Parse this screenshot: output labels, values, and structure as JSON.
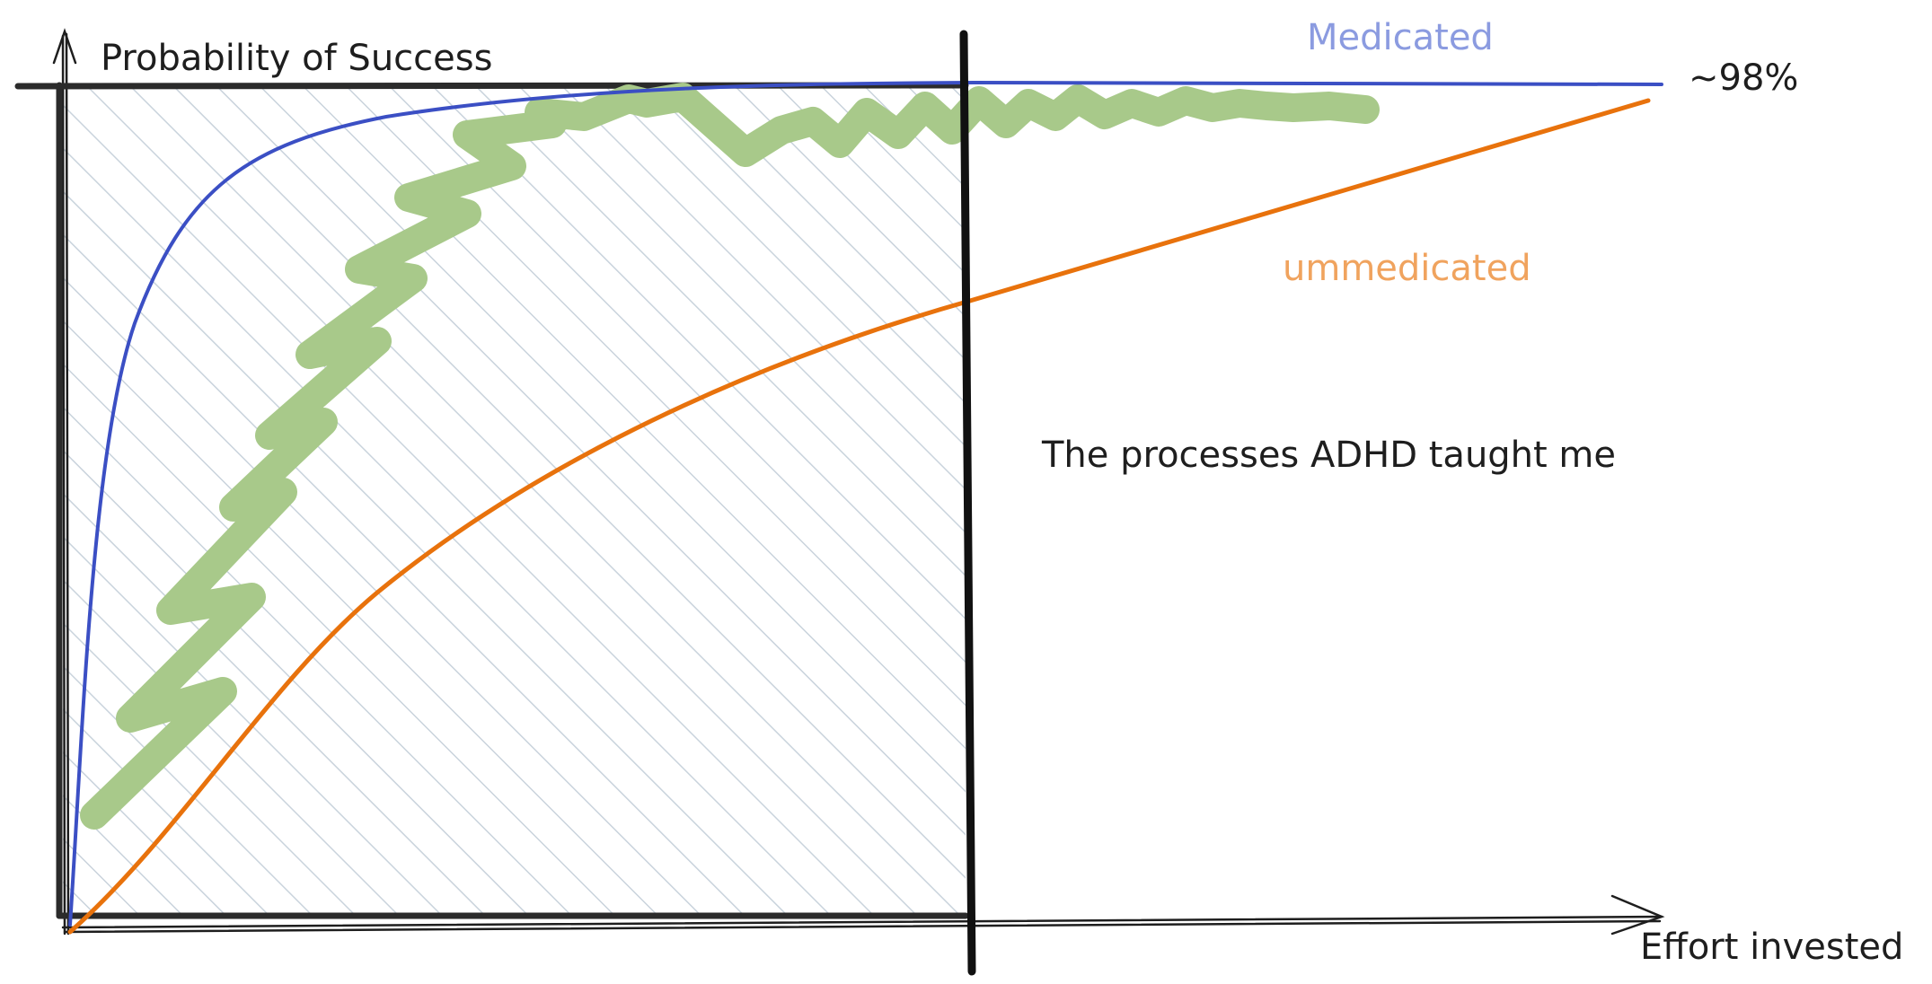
{
  "y_axis_label": "Probability of Success",
  "x_axis_label": "Effort invested",
  "max_value_label": "~98%",
  "note_text": "The processes ADHD taught me",
  "curves": [
    {
      "name": "Medicated",
      "color": "#3b4fc4",
      "label_color": "#8b9be0"
    },
    {
      "name": "ummedicated",
      "color": "#e8720c",
      "label_color": "#f0a35e"
    }
  ],
  "scribble_color": "#a8c98a",
  "hatch_color": "#c9d3dc",
  "frame_color": "#2b2b2b"
}
